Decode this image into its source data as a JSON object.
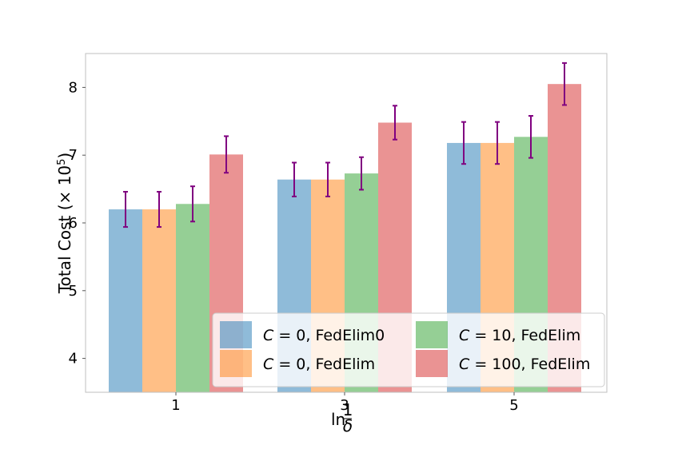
{
  "chart_data": {
    "type": "bar",
    "categories": [
      "1",
      "3",
      "5"
    ],
    "xlabel": "ln(1/δ)",
    "ylabel": "Total Cost (× 10^5)",
    "ylim": [
      3.5,
      8.5
    ],
    "yticks": [
      4,
      5,
      6,
      7,
      8
    ],
    "grid": false,
    "legend_position": "lower-right",
    "series": [
      {
        "name": "C = 0, FedElim0",
        "name_var": "C",
        "name_rest": " = 0, FedElim0",
        "color": "#1f77b4",
        "values": [
          6.2,
          6.64,
          7.18
        ],
        "errors": [
          0.26,
          0.25,
          0.31
        ]
      },
      {
        "name": "C = 0, FedElim",
        "name_var": "C",
        "name_rest": " = 0, FedElim",
        "color": "#ff7f0e",
        "values": [
          6.2,
          6.64,
          7.18
        ],
        "errors": [
          0.26,
          0.25,
          0.31
        ]
      },
      {
        "name": "C = 10, FedElim",
        "name_var": "C",
        "name_rest": " = 10, FedElim",
        "color": "#2ca02c",
        "values": [
          6.28,
          6.73,
          7.27
        ],
        "errors": [
          0.26,
          0.24,
          0.31
        ]
      },
      {
        "name": "C = 100, FedElim",
        "name_var": "C",
        "name_rest": " = 100, FedElim",
        "color": "#d62728",
        "values": [
          7.01,
          7.48,
          8.05
        ],
        "errors": [
          0.27,
          0.25,
          0.31
        ]
      }
    ],
    "error_bar_color": "#800080"
  }
}
